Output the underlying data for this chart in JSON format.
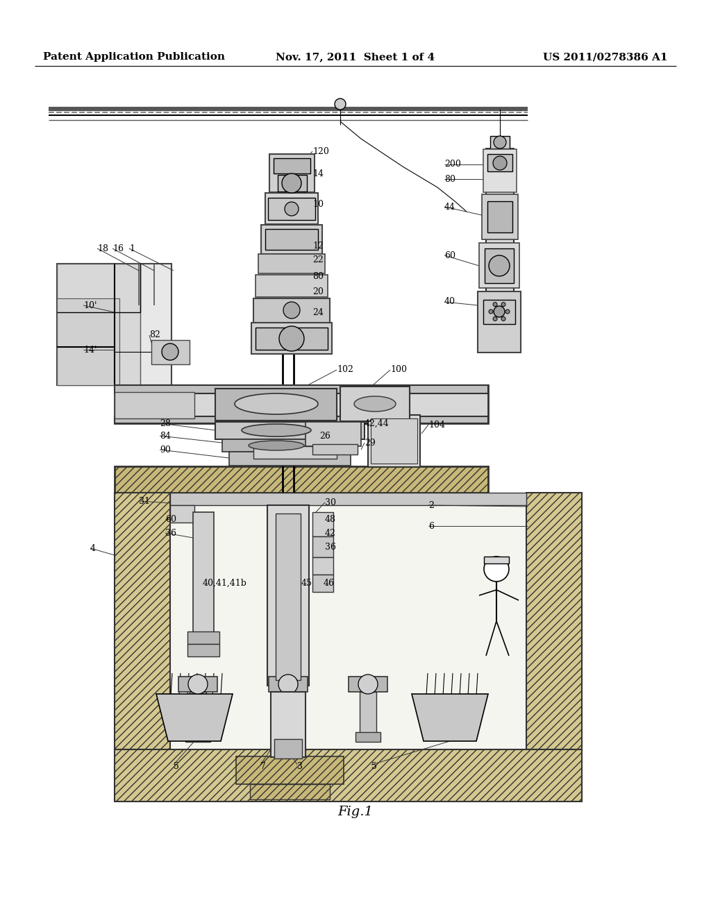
{
  "bg": "#ffffff",
  "header_left": "Patent Application Publication",
  "header_mid": "Nov. 17, 2011  Sheet 1 of 4",
  "header_right": "US 2011/0278386 A1",
  "fig_caption": "Fig.1",
  "lc": "#000000",
  "gray1": "#e8e8e8",
  "gray2": "#d0d0d0",
  "gray3": "#b0b0b0",
  "gray4": "#888888",
  "hatch_fc": "#d8d0b8",
  "white": "#ffffff"
}
